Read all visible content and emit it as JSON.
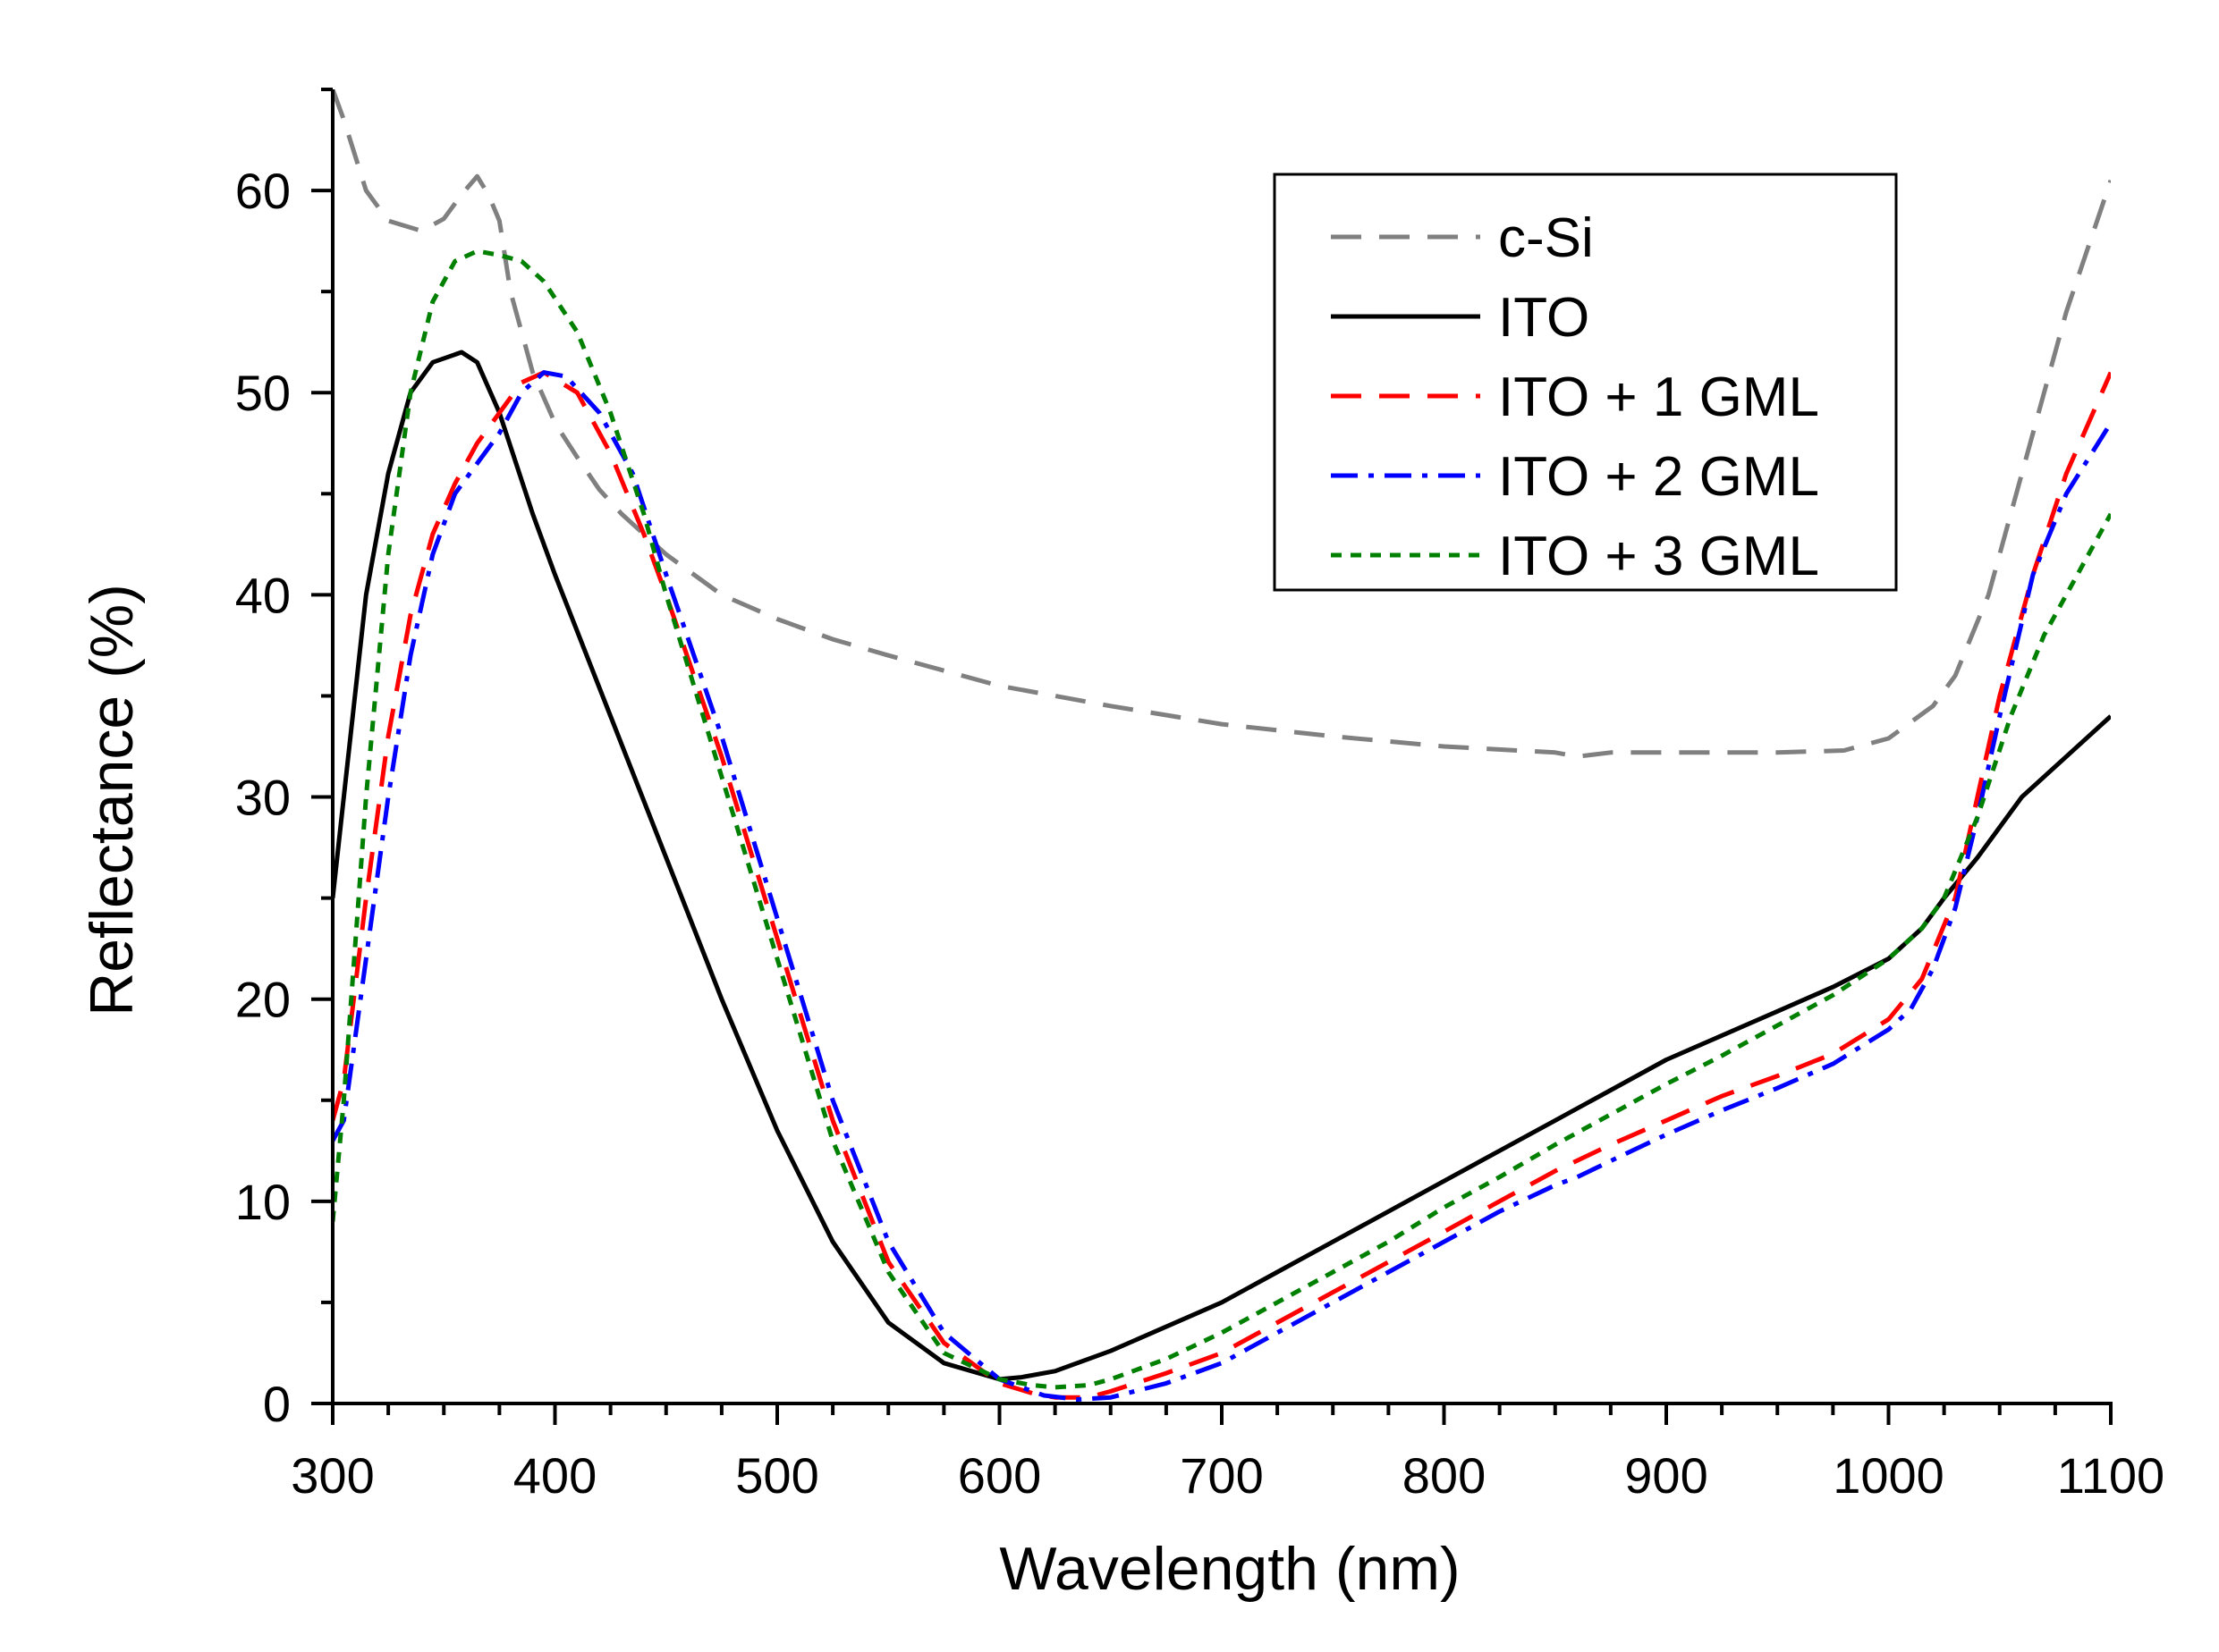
{
  "chart_data": {
    "type": "line",
    "title": "",
    "xlabel": "Wavelength (nm)",
    "ylabel": "Reflectance (%)",
    "xlim": [
      300,
      1100
    ],
    "ylim": [
      0,
      65
    ],
    "xticks": [
      300,
      400,
      500,
      600,
      700,
      800,
      900,
      1000,
      1100
    ],
    "yticks": [
      0,
      10,
      20,
      30,
      40,
      50,
      60
    ],
    "x_minor_step": 25,
    "y_minor_step": 5,
    "grid": false,
    "legend_position": "top-right",
    "series": [
      {
        "name": "c-Si",
        "color": "#808080",
        "dash": "dashed",
        "points": [
          [
            300,
            65
          ],
          [
            305,
            63.5
          ],
          [
            315,
            60
          ],
          [
            325,
            58.5
          ],
          [
            340,
            58
          ],
          [
            350,
            58.6
          ],
          [
            358,
            59.8
          ],
          [
            365,
            60.7
          ],
          [
            370,
            59.8
          ],
          [
            375,
            58.5
          ],
          [
            380,
            55
          ],
          [
            390,
            51
          ],
          [
            400,
            48.5
          ],
          [
            410,
            46.8
          ],
          [
            420,
            45.2
          ],
          [
            430,
            44
          ],
          [
            450,
            42
          ],
          [
            475,
            40
          ],
          [
            500,
            38.8
          ],
          [
            525,
            37.8
          ],
          [
            550,
            37
          ],
          [
            600,
            35.5
          ],
          [
            650,
            34.5
          ],
          [
            700,
            33.6
          ],
          [
            750,
            33
          ],
          [
            800,
            32.5
          ],
          [
            850,
            32.2
          ],
          [
            860,
            32
          ],
          [
            875,
            32.2
          ],
          [
            900,
            32.2
          ],
          [
            950,
            32.2
          ],
          [
            980,
            32.3
          ],
          [
            1000,
            32.9
          ],
          [
            1020,
            34.5
          ],
          [
            1030,
            36
          ],
          [
            1045,
            40
          ],
          [
            1060,
            46
          ],
          [
            1080,
            54
          ],
          [
            1100,
            60.5
          ]
        ]
      },
      {
        "name": "ITO",
        "color": "#000000",
        "dash": "solid",
        "points": [
          [
            300,
            25
          ],
          [
            305,
            30
          ],
          [
            315,
            40
          ],
          [
            325,
            46
          ],
          [
            335,
            50
          ],
          [
            345,
            51.5
          ],
          [
            358,
            52
          ],
          [
            365,
            51.5
          ],
          [
            375,
            49
          ],
          [
            390,
            44
          ],
          [
            400,
            41
          ],
          [
            425,
            34
          ],
          [
            450,
            27
          ],
          [
            475,
            20
          ],
          [
            500,
            13.5
          ],
          [
            525,
            8
          ],
          [
            550,
            4
          ],
          [
            575,
            2
          ],
          [
            600,
            1.2
          ],
          [
            610,
            1.3
          ],
          [
            625,
            1.6
          ],
          [
            650,
            2.6
          ],
          [
            675,
            3.8
          ],
          [
            700,
            5
          ],
          [
            725,
            6.5
          ],
          [
            750,
            8
          ],
          [
            775,
            9.5
          ],
          [
            800,
            11
          ],
          [
            825,
            12.5
          ],
          [
            850,
            14
          ],
          [
            875,
            15.5
          ],
          [
            900,
            17
          ],
          [
            925,
            18.2
          ],
          [
            950,
            19.4
          ],
          [
            975,
            20.6
          ],
          [
            1000,
            22
          ],
          [
            1015,
            23.5
          ],
          [
            1025,
            25
          ],
          [
            1040,
            27
          ],
          [
            1060,
            30
          ],
          [
            1080,
            32
          ],
          [
            1100,
            34
          ]
        ]
      },
      {
        "name": "ITO + 1 GML",
        "color": "#ff0000",
        "dash": "dashed",
        "points": [
          [
            300,
            14
          ],
          [
            305,
            16
          ],
          [
            315,
            25
          ],
          [
            325,
            33
          ],
          [
            335,
            39
          ],
          [
            345,
            43
          ],
          [
            355,
            45.5
          ],
          [
            365,
            47.5
          ],
          [
            375,
            49
          ],
          [
            385,
            50.5
          ],
          [
            395,
            51
          ],
          [
            410,
            50
          ],
          [
            425,
            47
          ],
          [
            440,
            43
          ],
          [
            450,
            40
          ],
          [
            475,
            32
          ],
          [
            500,
            23
          ],
          [
            525,
            14
          ],
          [
            550,
            7
          ],
          [
            575,
            3
          ],
          [
            600,
            1
          ],
          [
            615,
            0.5
          ],
          [
            625,
            0.3
          ],
          [
            640,
            0.3
          ],
          [
            650,
            0.6
          ],
          [
            675,
            1.5
          ],
          [
            700,
            2.5
          ],
          [
            725,
            4
          ],
          [
            750,
            5.5
          ],
          [
            775,
            7
          ],
          [
            800,
            8.5
          ],
          [
            825,
            10
          ],
          [
            850,
            11.5
          ],
          [
            875,
            12.8
          ],
          [
            900,
            14
          ],
          [
            925,
            15.2
          ],
          [
            950,
            16.2
          ],
          [
            975,
            17.3
          ],
          [
            1000,
            19
          ],
          [
            1015,
            21
          ],
          [
            1030,
            25
          ],
          [
            1040,
            30
          ],
          [
            1050,
            35
          ],
          [
            1065,
            41
          ],
          [
            1080,
            46
          ],
          [
            1100,
            51
          ]
        ]
      },
      {
        "name": "ITO + 2 GML",
        "color": "#0000ff",
        "dash": "dashdot",
        "points": [
          [
            300,
            13
          ],
          [
            305,
            14
          ],
          [
            315,
            22
          ],
          [
            325,
            30
          ],
          [
            335,
            37
          ],
          [
            345,
            42
          ],
          [
            355,
            45
          ],
          [
            365,
            46.5
          ],
          [
            375,
            48
          ],
          [
            385,
            50
          ],
          [
            395,
            51
          ],
          [
            405,
            50.8
          ],
          [
            420,
            49
          ],
          [
            435,
            46
          ],
          [
            450,
            41
          ],
          [
            475,
            33
          ],
          [
            500,
            24
          ],
          [
            525,
            15
          ],
          [
            550,
            8
          ],
          [
            575,
            3.5
          ],
          [
            600,
            1.2
          ],
          [
            620,
            0.4
          ],
          [
            635,
            0.2
          ],
          [
            650,
            0.3
          ],
          [
            675,
            1
          ],
          [
            700,
            2
          ],
          [
            725,
            3.5
          ],
          [
            750,
            5
          ],
          [
            775,
            6.5
          ],
          [
            800,
            8
          ],
          [
            825,
            9.5
          ],
          [
            850,
            10.8
          ],
          [
            860,
            11.2
          ],
          [
            875,
            12
          ],
          [
            900,
            13.3
          ],
          [
            925,
            14.5
          ],
          [
            950,
            15.6
          ],
          [
            975,
            16.8
          ],
          [
            1000,
            18.5
          ],
          [
            1010,
            19.5
          ],
          [
            1020,
            21.5
          ],
          [
            1030,
            24.5
          ],
          [
            1040,
            29
          ],
          [
            1050,
            34
          ],
          [
            1065,
            41
          ],
          [
            1080,
            45
          ],
          [
            1100,
            48.5
          ]
        ]
      },
      {
        "name": "ITO + 3 GML",
        "color": "#008000",
        "dash": "dotted",
        "points": [
          [
            300,
            9
          ],
          [
            305,
            15
          ],
          [
            315,
            30
          ],
          [
            325,
            42
          ],
          [
            335,
            50
          ],
          [
            345,
            54.5
          ],
          [
            355,
            56.5
          ],
          [
            365,
            57
          ],
          [
            375,
            56.8
          ],
          [
            385,
            56.5
          ],
          [
            395,
            55.5
          ],
          [
            410,
            53
          ],
          [
            425,
            49
          ],
          [
            440,
            44
          ],
          [
            450,
            40
          ],
          [
            475,
            31
          ],
          [
            500,
            22
          ],
          [
            525,
            13
          ],
          [
            550,
            6.5
          ],
          [
            575,
            2.5
          ],
          [
            600,
            1.2
          ],
          [
            615,
            0.9
          ],
          [
            625,
            0.8
          ],
          [
            640,
            0.9
          ],
          [
            650,
            1.2
          ],
          [
            675,
            2.2
          ],
          [
            700,
            3.5
          ],
          [
            725,
            5
          ],
          [
            750,
            6.5
          ],
          [
            775,
            8
          ],
          [
            800,
            9.7
          ],
          [
            825,
            11.2
          ],
          [
            850,
            12.8
          ],
          [
            875,
            14.3
          ],
          [
            900,
            15.8
          ],
          [
            925,
            17.2
          ],
          [
            950,
            18.7
          ],
          [
            975,
            20.2
          ],
          [
            1000,
            22
          ],
          [
            1015,
            23.5
          ],
          [
            1025,
            25
          ],
          [
            1040,
            29
          ],
          [
            1055,
            34
          ],
          [
            1070,
            38
          ],
          [
            1085,
            41
          ],
          [
            1100,
            44
          ]
        ]
      }
    ]
  }
}
